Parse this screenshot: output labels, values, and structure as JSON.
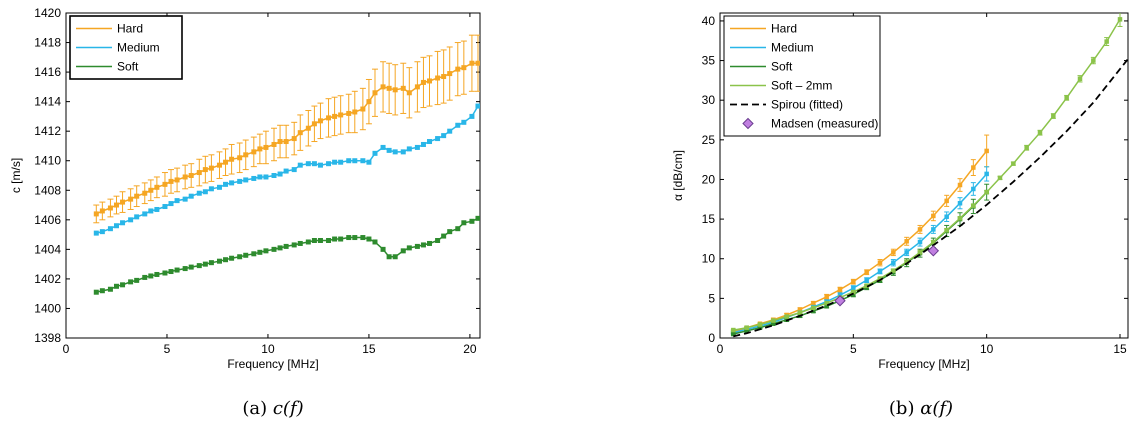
{
  "chart_data": [
    {
      "type": "line",
      "xlabel": "Frequency [MHz]",
      "ylabel": "c [m/s]",
      "caption": "(a) c(f)",
      "xlim": [
        0,
        20.5
      ],
      "ylim": [
        1398,
        1420
      ],
      "xticks": [
        0,
        5,
        10,
        15,
        20
      ],
      "yticks": [
        1398,
        1400,
        1402,
        1404,
        1406,
        1408,
        1410,
        1412,
        1414,
        1416,
        1418,
        1420
      ],
      "legend_position": "top-left",
      "x": [
        1.5,
        1.8,
        2.2,
        2.5,
        2.8,
        3.2,
        3.5,
        3.9,
        4.2,
        4.5,
        4.9,
        5.2,
        5.5,
        5.9,
        6.2,
        6.6,
        6.9,
        7.2,
        7.6,
        7.9,
        8.2,
        8.6,
        8.9,
        9.3,
        9.6,
        9.9,
        10.3,
        10.6,
        10.9,
        11.3,
        11.6,
        12.0,
        12.3,
        12.6,
        13.0,
        13.3,
        13.6,
        14.0,
        14.3,
        14.7,
        15.0,
        15.3,
        15.7,
        16.0,
        16.3,
        16.7,
        17.0,
        17.4,
        17.7,
        18.0,
        18.4,
        18.7,
        19.0,
        19.4,
        19.7,
        20.1,
        20.4
      ],
      "series": [
        {
          "name": "Hard",
          "color": "#f5a623",
          "values": [
            1406.4,
            1406.6,
            1406.8,
            1407.0,
            1407.2,
            1407.4,
            1407.6,
            1407.8,
            1408.0,
            1408.2,
            1408.4,
            1408.6,
            1408.7,
            1408.9,
            1409.0,
            1409.2,
            1409.4,
            1409.5,
            1409.7,
            1409.9,
            1410.1,
            1410.2,
            1410.4,
            1410.6,
            1410.8,
            1410.9,
            1411.1,
            1411.3,
            1411.3,
            1411.5,
            1411.9,
            1412.2,
            1412.5,
            1412.7,
            1412.9,
            1413.0,
            1413.1,
            1413.2,
            1413.3,
            1413.5,
            1414.0,
            1414.6,
            1415.0,
            1414.9,
            1414.8,
            1414.9,
            1414.6,
            1415.0,
            1415.3,
            1415.4,
            1415.6,
            1415.7,
            1415.9,
            1416.2,
            1416.3,
            1416.6,
            1416.6
          ],
          "errors": [
            0.6,
            0.6,
            0.6,
            0.6,
            0.7,
            0.7,
            0.7,
            0.7,
            0.7,
            0.7,
            0.8,
            0.8,
            0.8,
            0.8,
            0.8,
            0.9,
            0.9,
            0.9,
            0.9,
            0.9,
            1.0,
            1.0,
            1.0,
            1.0,
            1.0,
            1.1,
            1.1,
            1.1,
            1.1,
            1.1,
            1.2,
            1.2,
            1.2,
            1.2,
            1.3,
            1.3,
            1.3,
            1.3,
            1.4,
            1.4,
            1.5,
            1.6,
            1.7,
            1.7,
            1.7,
            1.7,
            1.7,
            1.7,
            1.7,
            1.7,
            1.8,
            1.8,
            1.8,
            1.8,
            1.8,
            1.9,
            1.9
          ]
        },
        {
          "name": "Medium",
          "color": "#29b6e8",
          "values": [
            1405.1,
            1405.2,
            1405.4,
            1405.6,
            1405.8,
            1406.0,
            1406.2,
            1406.4,
            1406.6,
            1406.7,
            1406.9,
            1407.1,
            1407.3,
            1407.4,
            1407.6,
            1407.8,
            1407.9,
            1408.1,
            1408.2,
            1408.4,
            1408.5,
            1408.6,
            1408.7,
            1408.8,
            1408.9,
            1408.9,
            1409.0,
            1409.1,
            1409.3,
            1409.4,
            1409.7,
            1409.8,
            1409.8,
            1409.7,
            1409.8,
            1409.9,
            1409.9,
            1410.0,
            1410.0,
            1410.0,
            1409.9,
            1410.5,
            1410.9,
            1410.7,
            1410.6,
            1410.6,
            1410.8,
            1410.9,
            1411.1,
            1411.3,
            1411.5,
            1411.7,
            1412.0,
            1412.4,
            1412.6,
            1413.0,
            1413.7
          ]
        },
        {
          "name": "Soft",
          "color": "#2e8b2e",
          "values": [
            1401.1,
            1401.2,
            1401.3,
            1401.5,
            1401.6,
            1401.8,
            1401.9,
            1402.1,
            1402.2,
            1402.3,
            1402.4,
            1402.5,
            1402.6,
            1402.7,
            1402.8,
            1402.9,
            1403.0,
            1403.1,
            1403.2,
            1403.3,
            1403.4,
            1403.5,
            1403.6,
            1403.7,
            1403.8,
            1403.9,
            1404.0,
            1404.1,
            1404.2,
            1404.3,
            1404.4,
            1404.5,
            1404.6,
            1404.6,
            1404.6,
            1404.7,
            1404.7,
            1404.8,
            1404.8,
            1404.8,
            1404.7,
            1404.5,
            1404.0,
            1403.5,
            1403.5,
            1403.9,
            1404.1,
            1404.2,
            1404.3,
            1404.4,
            1404.6,
            1404.9,
            1405.2,
            1405.4,
            1405.8,
            1405.9,
            1406.1
          ]
        }
      ]
    },
    {
      "type": "line",
      "xlabel": "Frequency [MHz]",
      "ylabel": "α [dB/cm]",
      "caption": "(b) α(f)",
      "xlim": [
        0,
        15.3
      ],
      "ylim": [
        0,
        41
      ],
      "xticks": [
        0,
        5,
        10,
        15
      ],
      "yticks": [
        0,
        5,
        10,
        15,
        20,
        25,
        30,
        35,
        40
      ],
      "legend_position": "top-left",
      "series": [
        {
          "name": "Hard",
          "color": "#f5a623",
          "x": [
            0.5,
            1.0,
            1.5,
            2.0,
            2.5,
            3.0,
            3.5,
            4.0,
            4.5,
            5.0,
            5.5,
            6.0,
            6.5,
            7.0,
            7.5,
            8.0,
            8.5,
            9.0,
            9.5,
            10.0
          ],
          "values": [
            0.8,
            1.3,
            1.8,
            2.3,
            2.9,
            3.6,
            4.4,
            5.2,
            6.1,
            7.1,
            8.3,
            9.5,
            10.8,
            12.2,
            13.7,
            15.4,
            17.3,
            19.3,
            21.5,
            23.6
          ],
          "errors": [
            0.1,
            0.1,
            0.1,
            0.2,
            0.2,
            0.2,
            0.2,
            0.3,
            0.3,
            0.3,
            0.3,
            0.4,
            0.4,
            0.5,
            0.5,
            0.6,
            0.7,
            0.8,
            1.0,
            2.0
          ]
        },
        {
          "name": "Medium",
          "color": "#29b6e8",
          "x": [
            0.5,
            1.0,
            1.5,
            2.0,
            2.5,
            3.0,
            3.5,
            4.0,
            4.5,
            5.0,
            5.5,
            6.0,
            6.5,
            7.0,
            7.5,
            8.0,
            8.5,
            9.0,
            9.5,
            10.0
          ],
          "values": [
            0.7,
            1.1,
            1.5,
            2.0,
            2.6,
            3.2,
            3.9,
            4.6,
            5.4,
            6.3,
            7.3,
            8.4,
            9.5,
            10.8,
            12.1,
            13.7,
            15.3,
            17.0,
            18.8,
            20.7
          ],
          "errors": [
            0.1,
            0.1,
            0.1,
            0.1,
            0.2,
            0.2,
            0.2,
            0.2,
            0.3,
            0.3,
            0.3,
            0.3,
            0.4,
            0.4,
            0.5,
            0.5,
            0.6,
            0.7,
            0.8,
            0.9
          ]
        },
        {
          "name": "Soft",
          "color": "#2e8b2e",
          "x": [
            0.5,
            1.0,
            1.5,
            2.0,
            2.5,
            3.0,
            3.5,
            4.0,
            4.5,
            5.0,
            5.5,
            6.0,
            6.5,
            7.0,
            7.5,
            8.0,
            8.5,
            9.0,
            9.5,
            10.0
          ],
          "values": [
            0.5,
            0.9,
            1.3,
            1.8,
            2.3,
            2.8,
            3.4,
            4.0,
            4.7,
            5.5,
            6.4,
            7.3,
            8.3,
            9.5,
            10.7,
            12.0,
            13.5,
            15.0,
            16.6,
            18.4
          ],
          "errors": [
            0.1,
            0.1,
            0.1,
            0.1,
            0.2,
            0.2,
            0.2,
            0.2,
            0.3,
            0.3,
            0.3,
            0.3,
            0.4,
            0.5,
            0.5,
            0.6,
            0.7,
            0.8,
            0.9,
            1.0
          ]
        },
        {
          "name": "Soft – 2mm",
          "color": "#8bc34a",
          "x": [
            0.5,
            1.0,
            1.5,
            2.0,
            2.5,
            3.0,
            3.5,
            4.0,
            4.5,
            5.0,
            5.5,
            6.0,
            6.5,
            7.0,
            7.5,
            8.0,
            8.5,
            9.0,
            9.5,
            10.0,
            10.5,
            11.0,
            11.5,
            12.0,
            12.5,
            13.0,
            13.5,
            14.0,
            14.5,
            15.0
          ],
          "values": [
            1.0,
            1.3,
            1.7,
            2.2,
            2.7,
            3.2,
            3.8,
            4.4,
            5.1,
            5.8,
            6.6,
            7.5,
            8.5,
            9.6,
            10.8,
            12.1,
            13.6,
            15.1,
            16.7,
            18.4,
            20.2,
            22.0,
            24.0,
            25.9,
            28.0,
            30.3,
            32.7,
            35.0,
            37.4,
            40.2
          ],
          "errors": [
            0.1,
            0.1,
            0.1,
            0.1,
            0.1,
            0.1,
            0.1,
            0.1,
            0.1,
            0.1,
            0.1,
            0.1,
            0.1,
            0.2,
            0.2,
            0.2,
            0.2,
            0.2,
            0.2,
            0.2,
            0.2,
            0.2,
            0.3,
            0.3,
            0.3,
            0.3,
            0.4,
            0.4,
            0.5,
            0.9
          ]
        },
        {
          "name": "Spirou (fitted)",
          "color": "#000000",
          "style": "dashed",
          "x": [
            0.5,
            1.0,
            2.0,
            3.0,
            4.0,
            5.0,
            6.0,
            7.0,
            8.0,
            9.0,
            10.0,
            11.0,
            12.0,
            13.0,
            14.0,
            15.3
          ],
          "values": [
            0.2,
            0.6,
            1.6,
            2.8,
            4.1,
            5.6,
            7.3,
            9.4,
            11.7,
            14.1,
            16.8,
            19.7,
            22.8,
            26.1,
            29.7,
            35.2
          ]
        },
        {
          "name": "Madsen (measured)",
          "color": "#c07fe0",
          "style": "markers",
          "x": [
            4.5,
            8.0
          ],
          "values": [
            4.7,
            11.0
          ]
        }
      ]
    }
  ]
}
